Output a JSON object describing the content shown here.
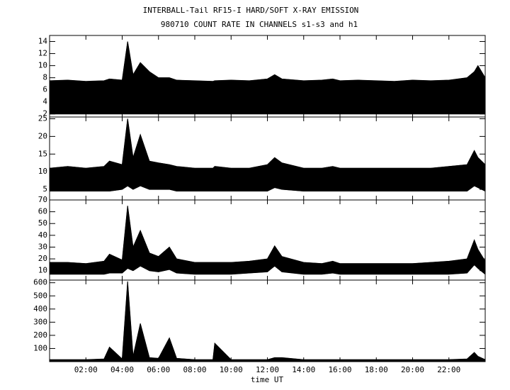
{
  "chart_data": [
    {
      "type": "area",
      "title": "INTERBALL-Tail RF15-I HARD/SOFT X-RAY EMISSION",
      "subtitle": "980710  COUNT RATE IN CHANNELS s1-s3 and h1",
      "x": [
        0,
        1,
        2,
        3,
        3.3,
        4,
        4.3,
        4.6,
        5,
        5.5,
        6,
        6.6,
        7,
        8,
        9,
        9.1,
        10,
        11,
        12,
        12.4,
        12.8,
        14,
        15,
        15.6,
        16,
        17,
        18,
        19,
        20,
        21,
        22,
        23,
        23.4,
        23.6,
        24
      ],
      "xlim": [
        0,
        24
      ],
      "ylim": [
        1.5,
        15
      ],
      "yticks": [
        2,
        4,
        6,
        8,
        10,
        12,
        14
      ],
      "series": [
        {
          "color": "#000000",
          "values": [
            2,
            2,
            2,
            2,
            2,
            2,
            2,
            2,
            2,
            2,
            2,
            2,
            2,
            2,
            2,
            2,
            2,
            2,
            2,
            2,
            2,
            2,
            2,
            2,
            2,
            2,
            2,
            2,
            2,
            2,
            2,
            2,
            2,
            2,
            2
          ]
        },
        {
          "color": "#000000",
          "values": [
            7.5,
            7.6,
            7.4,
            7.5,
            7.8,
            7.6,
            14,
            8.5,
            10.5,
            9,
            8,
            8,
            7.6,
            7.5,
            7.4,
            7.5,
            7.6,
            7.5,
            7.8,
            8.5,
            7.8,
            7.5,
            7.6,
            7.8,
            7.5,
            7.6,
            7.5,
            7.4,
            7.6,
            7.5,
            7.6,
            8,
            9,
            10,
            8
          ]
        }
      ]
    },
    {
      "type": "area",
      "x": [
        0,
        1,
        2,
        3,
        3.3,
        4,
        4.3,
        4.6,
        5,
        5.5,
        6,
        6.6,
        7,
        8,
        9,
        9.1,
        10,
        11,
        12,
        12.4,
        12.8,
        14,
        15,
        15.6,
        16,
        17,
        18,
        19,
        20,
        21,
        22,
        23,
        23.4,
        23.6,
        24
      ],
      "xlim": [
        0,
        24
      ],
      "ylim": [
        2,
        25.5
      ],
      "yticks": [
        5,
        10,
        15,
        20,
        25
      ],
      "series": [
        {
          "color": "#000000",
          "values": [
            4.5,
            4.5,
            4.5,
            4.5,
            4.5,
            5,
            6,
            5,
            6,
            5,
            5,
            5,
            4.5,
            4.5,
            4.5,
            4.5,
            4.5,
            4.5,
            4.5,
            5.5,
            5,
            4.5,
            4.5,
            4.5,
            4.5,
            4.5,
            4.5,
            4.5,
            4.5,
            4.5,
            4.5,
            4.5,
            6,
            5.5,
            4.5
          ]
        },
        {
          "color": "#000000",
          "values": [
            11,
            11.5,
            11,
            11.5,
            13,
            12,
            25,
            14,
            20.5,
            13,
            12.5,
            12,
            11.5,
            11,
            11,
            11.5,
            11,
            11,
            12,
            14,
            12.5,
            11,
            11,
            11.5,
            11,
            11,
            11,
            11,
            11,
            11,
            11.5,
            12,
            16,
            14,
            12
          ]
        }
      ]
    },
    {
      "type": "area",
      "x": [
        0,
        1,
        2,
        3,
        3.3,
        4,
        4.3,
        4.6,
        5,
        5.5,
        6,
        6.6,
        7,
        8,
        9,
        9.1,
        10,
        11,
        12,
        12.4,
        12.8,
        14,
        15,
        15.6,
        16,
        17,
        18,
        19,
        20,
        21,
        22,
        23,
        23.4,
        23.6,
        24
      ],
      "xlim": [
        0,
        24
      ],
      "ylim": [
        2,
        70
      ],
      "yticks": [
        10,
        20,
        30,
        40,
        50,
        60,
        70
      ],
      "series": [
        {
          "color": "#000000",
          "values": [
            7,
            7,
            7,
            7,
            8,
            8,
            12,
            10,
            14,
            10,
            9,
            11,
            8,
            7,
            7,
            7,
            7,
            8,
            9,
            14,
            9,
            7,
            7,
            8,
            7,
            7,
            7,
            7,
            7,
            7,
            7,
            8,
            15,
            12,
            7
          ]
        },
        {
          "color": "#000000",
          "values": [
            17,
            17,
            16,
            18,
            24,
            19,
            65,
            30,
            44,
            25,
            22,
            30,
            20,
            17,
            17,
            17,
            17,
            18,
            20,
            31,
            22,
            17,
            16,
            18,
            16,
            16,
            16,
            16,
            16,
            17,
            18,
            20,
            36,
            28,
            18
          ]
        }
      ]
    },
    {
      "type": "area",
      "xlabel": "time UT",
      "x": [
        0,
        1,
        2,
        3,
        3.3,
        4,
        4.3,
        4.6,
        5,
        5.5,
        6,
        6.6,
        7,
        8,
        9,
        9.1,
        10,
        11,
        12,
        12.4,
        12.8,
        14,
        15,
        15.6,
        16,
        17,
        18,
        19,
        20,
        21,
        22,
        23,
        23.4,
        23.6,
        24
      ],
      "xlim": [
        0,
        24
      ],
      "ylim": [
        0,
        620
      ],
      "yticks": [
        100,
        200,
        300,
        400,
        500,
        600
      ],
      "xticks": [
        {
          "value": 2,
          "label": "02:00"
        },
        {
          "value": 4,
          "label": "04:00"
        },
        {
          "value": 6,
          "label": "06:00"
        },
        {
          "value": 8,
          "label": "08:00"
        },
        {
          "value": 10,
          "label": "10:00"
        },
        {
          "value": 12,
          "label": "12:00"
        },
        {
          "value": 14,
          "label": "14:00"
        },
        {
          "value": 16,
          "label": "16:00"
        },
        {
          "value": 18,
          "label": "18:00"
        },
        {
          "value": 20,
          "label": "20:00"
        },
        {
          "value": 22,
          "label": "22:00"
        }
      ],
      "series": [
        {
          "color": "#000000",
          "values": [
            0,
            0,
            0,
            0,
            0,
            0,
            0,
            0,
            0,
            0,
            0,
            0,
            0,
            0,
            0,
            0,
            0,
            0,
            0,
            0,
            0,
            0,
            0,
            0,
            0,
            0,
            0,
            0,
            0,
            0,
            0,
            0,
            0,
            0,
            0
          ]
        },
        {
          "color": "#000000",
          "values": [
            15,
            15,
            15,
            20,
            110,
            20,
            610,
            40,
            290,
            30,
            25,
            180,
            25,
            15,
            15,
            140,
            15,
            15,
            15,
            30,
            30,
            15,
            15,
            15,
            15,
            15,
            15,
            15,
            15,
            15,
            15,
            20,
            70,
            40,
            15
          ]
        }
      ]
    }
  ]
}
